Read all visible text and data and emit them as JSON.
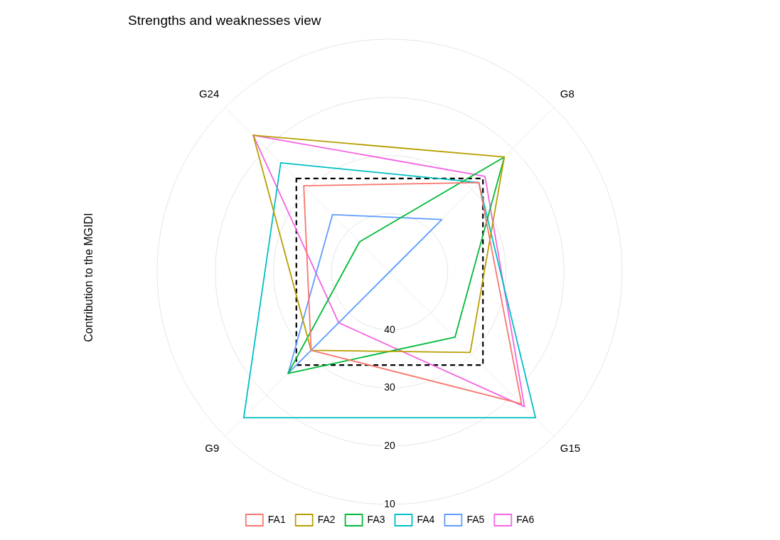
{
  "chart_data": {
    "type": "radar",
    "title": "Strengths and weaknesses view",
    "ylabel": "Contribution to the MGIDI",
    "categories": [
      "G24",
      "G8",
      "G15",
      "G9"
    ],
    "ylim": [
      50,
      10
    ],
    "yticks": [
      10,
      20,
      30,
      40
    ],
    "grid": true,
    "legend": "bottom",
    "series": [
      {
        "name": "FA1",
        "color": "#f8766d",
        "values": [
          29.1,
          28.3,
          17.9,
          30.9
        ]
      },
      {
        "name": "FA2",
        "color": "#b79f00",
        "values": [
          16.8,
          22.1,
          30.4,
          30.9
        ]
      },
      {
        "name": "FA3",
        "color": "#00ba38",
        "values": [
          42.7,
          22.1,
          34.1,
          25.3
        ]
      },
      {
        "name": "FA4",
        "color": "#00bfc4",
        "values": [
          23.5,
          28.3,
          14.5,
          14.5
        ]
      },
      {
        "name": "FA5",
        "color": "#619cff",
        "values": [
          36.1,
          37.3,
          50,
          25.3
        ]
      },
      {
        "name": "FA6",
        "color": "#f564e3",
        "values": [
          16.8,
          26.8,
          17.2,
          37.6
        ]
      },
      {
        "color": "#000000",
        "line_style": "dashed",
        "values": [
          27.3,
          27.3,
          27.3,
          27.3
        ]
      }
    ]
  }
}
